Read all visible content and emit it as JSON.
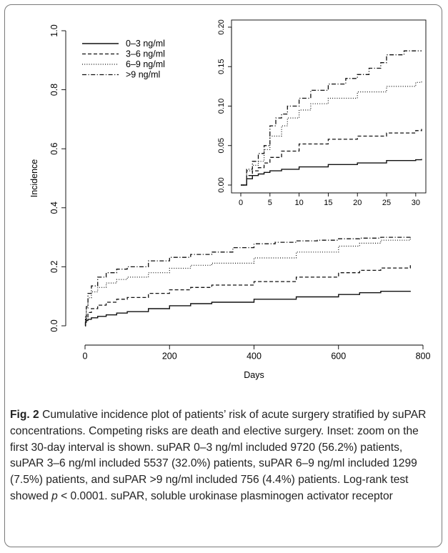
{
  "chart_data": [
    {
      "type": "line",
      "panel": "main",
      "xlabel": "Days",
      "ylabel": "Incidence",
      "xlim": [
        0,
        800
      ],
      "ylim": [
        0,
        1.0
      ],
      "x_ticks": [
        "0",
        "200",
        "400",
        "600",
        "800"
      ],
      "y_ticks": [
        "0.0",
        "0.2",
        "0.4",
        "0.6",
        "0.8",
        "1.0"
      ],
      "legend_position": "top-left",
      "series": [
        {
          "name": "0–3 ng/ml",
          "line_style": "solid",
          "x": [
            0,
            1,
            3,
            7,
            15,
            30,
            50,
            75,
            100,
            150,
            200,
            250,
            300,
            400,
            500,
            600,
            650,
            700,
            770
          ],
          "y": [
            0,
            0.012,
            0.018,
            0.022,
            0.027,
            0.032,
            0.037,
            0.043,
            0.048,
            0.058,
            0.068,
            0.075,
            0.08,
            0.09,
            0.098,
            0.106,
            0.112,
            0.117,
            0.118
          ]
        },
        {
          "name": "3–6 ng/ml",
          "line_style": "dashed",
          "x": [
            0,
            1,
            3,
            7,
            15,
            30,
            50,
            75,
            100,
            150,
            200,
            250,
            300,
            400,
            500,
            600,
            650,
            700,
            770
          ],
          "y": [
            0,
            0.02,
            0.03,
            0.045,
            0.058,
            0.07,
            0.08,
            0.09,
            0.096,
            0.11,
            0.122,
            0.13,
            0.138,
            0.15,
            0.165,
            0.18,
            0.188,
            0.196,
            0.205
          ]
        },
        {
          "name": "6–9 ng/ml",
          "line_style": "dotted",
          "x": [
            0,
            1,
            3,
            7,
            15,
            30,
            50,
            75,
            100,
            150,
            200,
            250,
            300,
            400,
            500,
            600,
            650,
            700,
            770
          ],
          "y": [
            0,
            0.03,
            0.06,
            0.095,
            0.115,
            0.13,
            0.145,
            0.157,
            0.165,
            0.18,
            0.195,
            0.205,
            0.212,
            0.23,
            0.25,
            0.27,
            0.28,
            0.29,
            0.295
          ]
        },
        {
          "name": ">9 ng/ml",
          "line_style": "dash-dot",
          "x": [
            0,
            1,
            3,
            7,
            15,
            30,
            50,
            75,
            100,
            150,
            200,
            250,
            300,
            350,
            400,
            450,
            500,
            550,
            600,
            650,
            700,
            770
          ],
          "y": [
            0,
            0.03,
            0.065,
            0.11,
            0.135,
            0.165,
            0.18,
            0.192,
            0.2,
            0.22,
            0.232,
            0.242,
            0.25,
            0.265,
            0.278,
            0.283,
            0.288,
            0.29,
            0.295,
            0.297,
            0.3,
            0.302
          ]
        }
      ]
    },
    {
      "type": "line",
      "panel": "inset",
      "xlim": [
        0,
        31
      ],
      "ylim": [
        0,
        0.2
      ],
      "x_ticks": [
        "0",
        "5",
        "10",
        "15",
        "20",
        "25",
        "30"
      ],
      "y_ticks": [
        "0.00",
        "0.05",
        "0.10",
        "0.15",
        "0.20"
      ],
      "series": [
        {
          "name": "0–3 ng/ml",
          "line_style": "solid",
          "x": [
            0,
            0.9,
            1.0,
            2,
            3,
            4,
            5,
            7,
            10,
            15,
            20,
            25,
            30,
            31
          ],
          "y": [
            0,
            0,
            0.008,
            0.012,
            0.014,
            0.016,
            0.018,
            0.02,
            0.023,
            0.026,
            0.028,
            0.031,
            0.032,
            0.033
          ]
        },
        {
          "name": "3–6 ng/ml",
          "line_style": "dashed",
          "x": [
            0,
            0.9,
            1.0,
            2,
            3,
            4,
            5,
            7,
            10,
            15,
            20,
            25,
            30,
            31
          ],
          "y": [
            0,
            0,
            0.012,
            0.018,
            0.022,
            0.028,
            0.035,
            0.043,
            0.052,
            0.058,
            0.062,
            0.066,
            0.069,
            0.071
          ]
        },
        {
          "name": "6–9 ng/ml",
          "line_style": "dotted",
          "x": [
            0,
            0.9,
            1.0,
            2,
            3,
            4,
            5,
            7,
            8,
            10,
            12,
            15,
            20,
            25,
            30,
            31
          ],
          "y": [
            0,
            0,
            0.018,
            0.025,
            0.03,
            0.045,
            0.062,
            0.075,
            0.085,
            0.095,
            0.103,
            0.11,
            0.118,
            0.125,
            0.13,
            0.132
          ]
        },
        {
          "name": ">9 ng/ml",
          "line_style": "dash-dot",
          "x": [
            0,
            0.9,
            1.0,
            2,
            3,
            4,
            5,
            6,
            7,
            8,
            10,
            12,
            15,
            18,
            20,
            22,
            24,
            25,
            28,
            30,
            31
          ],
          "y": [
            0,
            0,
            0.02,
            0.03,
            0.04,
            0.05,
            0.075,
            0.085,
            0.09,
            0.1,
            0.11,
            0.12,
            0.128,
            0.135,
            0.14,
            0.148,
            0.155,
            0.165,
            0.17,
            0.17,
            0.17
          ]
        }
      ]
    }
  ],
  "caption": {
    "label": "Fig. 2",
    "text_before_p": " Cumulative incidence plot of patients’ risk of acute surgery stratified by suPAR concentrations. Competing risks are death and elective surgery. Inset: zoom on the first 30-day interval is shown. suPAR 0–3 ng/ml included 9720 (56.2%) patients, suPAR 3–6 ng/ml included 5537 (32.0%) patients, suPAR 6–9 ng/ml included 1299 (7.5%) patients, and suPAR >9 ng/ml included 756 (4.4%) patients. Log-rank test showed ",
    "p_symbol": "p",
    "text_after_p": " < 0.0001. suPAR, soluble urokinase plasminogen activator receptor"
  }
}
